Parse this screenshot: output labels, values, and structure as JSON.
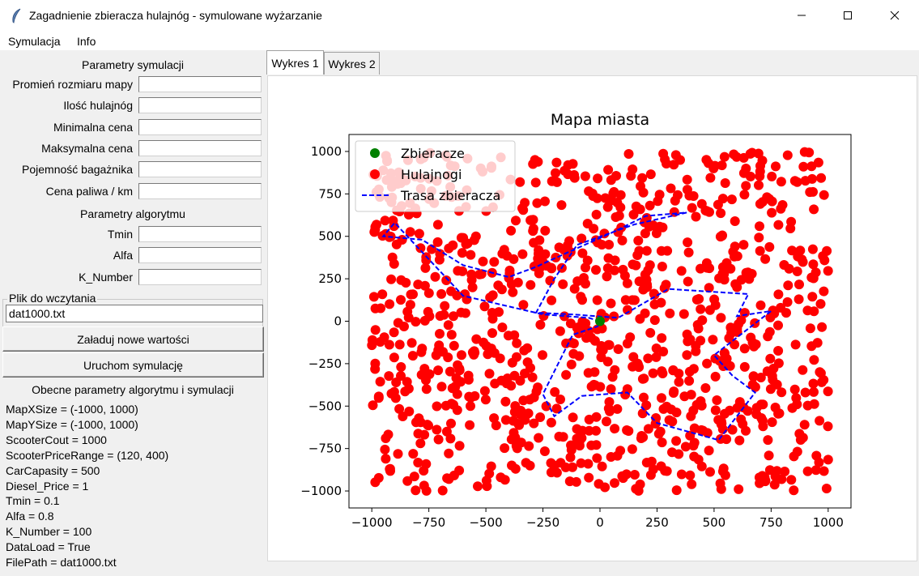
{
  "window": {
    "title": "Zagadnienie zbieracza hulajnóg - symulowane wyżarzanie",
    "icon": "feather-icon",
    "controls": [
      "minimize-icon",
      "maximize-icon",
      "close-icon"
    ]
  },
  "menu": [
    "Symulacja",
    "Info"
  ],
  "sim_params": {
    "header": "Parametry symulacji",
    "fields": [
      {
        "label": "Promień rozmiaru mapy",
        "value": ""
      },
      {
        "label": "Ilość hulajnóg",
        "value": ""
      },
      {
        "label": "Minimalna cena",
        "value": ""
      },
      {
        "label": "Maksymalna cena",
        "value": ""
      },
      {
        "label": "Pojemność bagażnika",
        "value": ""
      },
      {
        "label": "Cena paliwa / km",
        "value": ""
      }
    ]
  },
  "algo_params": {
    "header": "Parametry algorytmu",
    "fields": [
      {
        "label": "Tmin",
        "value": ""
      },
      {
        "label": "Alfa",
        "value": ""
      },
      {
        "label": "K_Number",
        "value": ""
      }
    ]
  },
  "file": {
    "label": "Plik do wczytania",
    "value": "dat1000.txt"
  },
  "buttons": {
    "load": "Załaduj nowe wartości",
    "run": "Uruchom symulację"
  },
  "current": {
    "header": "Obecne parametry algorytmu i symulacji",
    "lines": [
      "MapXSize = (-1000, 1000)",
      "MapYSize = (-1000, 1000)",
      "ScooterCout = 1000",
      "ScooterPriceRange = (120, 400)",
      "CarCapasity = 500",
      "Diesel_Price = 1",
      "Tmin = 0.1",
      "Alfa = 0.8",
      "K_Number = 100",
      "DataLoad = True",
      "FilePath = dat1000.txt"
    ]
  },
  "tabs": [
    "Wykres 1",
    "Wykres 2"
  ],
  "chart_data": {
    "type": "scatter",
    "title": "Mapa miasta",
    "xlim": [
      -1100,
      1100
    ],
    "ylim": [
      -1100,
      1100
    ],
    "xticks": [
      -1000,
      -750,
      -500,
      -250,
      0,
      250,
      500,
      750,
      1000
    ],
    "yticks": [
      -1000,
      -750,
      -500,
      -250,
      0,
      250,
      500,
      750,
      1000
    ],
    "xtick_labels": [
      "−1000",
      "−750",
      "−500",
      "−250",
      "0",
      "250",
      "500",
      "750",
      "1000"
    ],
    "ytick_labels": [
      "−1000",
      "−750",
      "−500",
      "−250",
      "0",
      "250",
      "500",
      "750",
      "1000"
    ],
    "legend": {
      "placement": "top-left",
      "entries": [
        "Zbieracze",
        "Hulajnogi",
        "Trasa zbieracza"
      ]
    },
    "series": [
      {
        "name": "Zbieracze",
        "kind": "scatter",
        "color": "#008000",
        "points": [
          [
            0,
            0
          ]
        ]
      },
      {
        "name": "Hulajnogi",
        "kind": "scatter",
        "color": "#ff0000",
        "count": 1000,
        "x_range": [
          -1000,
          1000
        ],
        "y_range": [
          -1000,
          1000
        ]
      },
      {
        "name": "Trasa zbieracza",
        "kind": "line",
        "color": "#0000ff",
        "dash": "dashed",
        "points": [
          [
            0,
            0
          ],
          [
            -50,
            20
          ],
          [
            -250,
            40
          ],
          [
            -600,
            150
          ],
          [
            -900,
            580
          ],
          [
            -950,
            500
          ],
          [
            -780,
            480
          ],
          [
            -600,
            330
          ],
          [
            -400,
            260
          ],
          [
            -280,
            320
          ],
          [
            -150,
            400
          ],
          [
            50,
            520
          ],
          [
            200,
            620
          ],
          [
            380,
            640
          ],
          [
            150,
            570
          ],
          [
            -100,
            450
          ],
          [
            -200,
            250
          ],
          [
            -280,
            50
          ],
          [
            -120,
            40
          ],
          [
            80,
            20
          ],
          [
            300,
            190
          ],
          [
            650,
            160
          ],
          [
            600,
            30
          ],
          [
            750,
            60
          ],
          [
            500,
            -200
          ],
          [
            580,
            -320
          ],
          [
            680,
            -420
          ],
          [
            520,
            -700
          ],
          [
            250,
            -600
          ],
          [
            120,
            -420
          ],
          [
            -80,
            -440
          ],
          [
            -200,
            -560
          ],
          [
            -250,
            -430
          ],
          [
            -120,
            -80
          ],
          [
            -10,
            -30
          ],
          [
            0,
            0
          ]
        ]
      }
    ]
  }
}
